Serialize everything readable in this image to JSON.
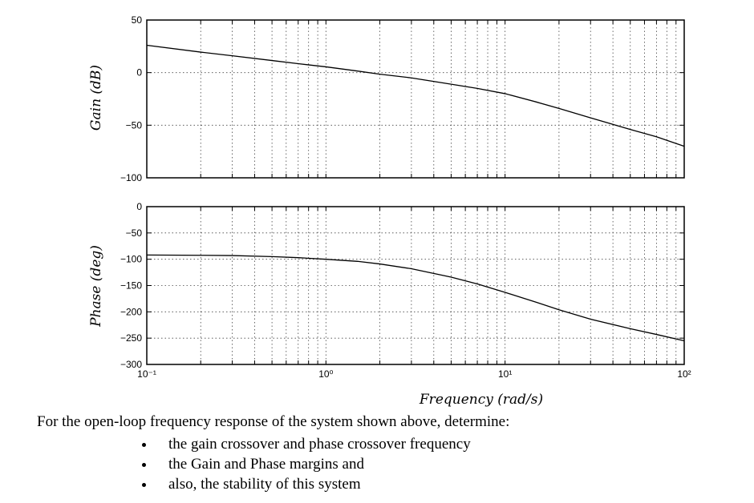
{
  "chart_data": [
    {
      "type": "line",
      "title": "",
      "ylabel": "Gain (dB)",
      "xlabel": "",
      "x_scale": "log",
      "xlim": [
        0.1,
        100
      ],
      "ylim": [
        -100,
        50
      ],
      "yticks": [
        50,
        0,
        -50,
        -100
      ],
      "yticks_labels": [
        "50",
        "0",
        "−50",
        "−100"
      ],
      "grid": true,
      "series": [
        {
          "x": [
            0.1,
            0.2,
            0.3,
            0.5,
            0.7,
            1.0,
            1.5,
            2.0,
            3.0,
            5.0,
            7.0,
            10,
            15,
            20,
            30,
            50,
            70,
            100
          ],
          "values": [
            26,
            19.5,
            16,
            11.5,
            8.5,
            5.5,
            1.5,
            -1.5,
            -5,
            -11,
            -15,
            -20,
            -28,
            -34,
            -43,
            -54,
            -61,
            -70
          ]
        }
      ]
    },
    {
      "type": "line",
      "title": "",
      "ylabel": "Phase (deg)",
      "xlabel": "Frequency (rad/s)",
      "x_scale": "log",
      "xlim": [
        0.1,
        100
      ],
      "ylim": [
        -300,
        0
      ],
      "yticks": [
        0,
        -50,
        -100,
        -150,
        -200,
        -250,
        -300
      ],
      "yticks_labels": [
        "0",
        "−50",
        "−100",
        "−150",
        "−200",
        "−250",
        "−300"
      ],
      "xticks": [
        0.1,
        1,
        10,
        100
      ],
      "xticks_labels": [
        "10⁻¹",
        "10⁰",
        "10¹",
        "10²"
      ],
      "grid": true,
      "series": [
        {
          "x": [
            0.1,
            0.2,
            0.3,
            0.5,
            0.7,
            1.0,
            1.5,
            2.0,
            3.0,
            5.0,
            7.0,
            10,
            15,
            20,
            30,
            50,
            70,
            100
          ],
          "values": [
            -92,
            -92.5,
            -93,
            -95,
            -97,
            -100,
            -104,
            -109,
            -118,
            -134,
            -147,
            -163,
            -182,
            -196,
            -214,
            -232,
            -243,
            -255
          ]
        }
      ]
    }
  ],
  "question": {
    "intro": "For the open-loop frequency response of the system shown above, determine:",
    "items": [
      "the gain crossover and phase crossover frequency",
      "the Gain and Phase margins and",
      "also, the stability of this system"
    ]
  }
}
